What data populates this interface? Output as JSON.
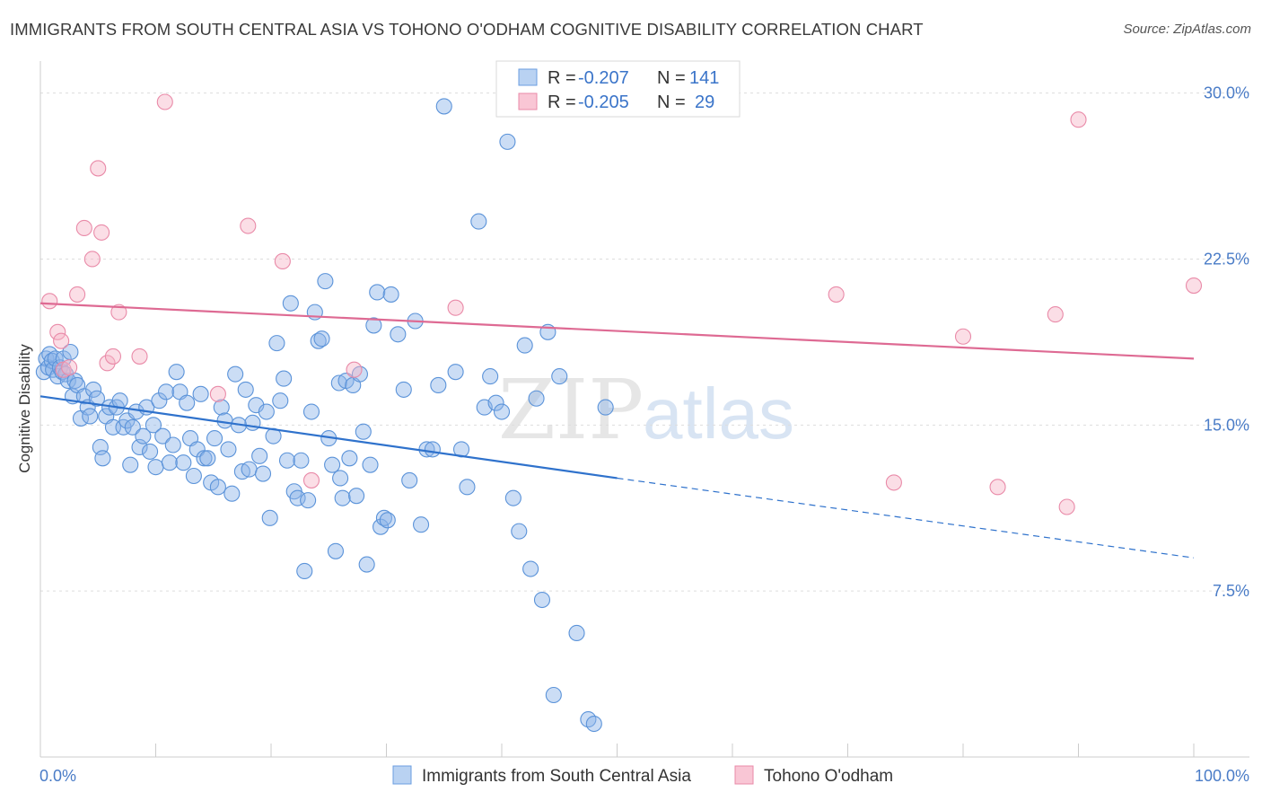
{
  "header": {
    "title": "IMMIGRANTS FROM SOUTH CENTRAL ASIA VS TOHONO O'ODHAM COGNITIVE DISABILITY CORRELATION CHART",
    "source": "Source: ZipAtlas.com"
  },
  "watermark": {
    "part1": "ZIP",
    "part2": "atlas"
  },
  "legend": {
    "rows": [
      {
        "r_label": "R = ",
        "r_value": "-0.207",
        "n_label": "N = ",
        "n_value": "141"
      },
      {
        "r_label": "R = ",
        "r_value": "-0.205",
        "n_label": "N = ",
        "n_value": "29"
      }
    ]
  },
  "chart_data": {
    "type": "scatter",
    "xlabel": "",
    "ylabel": "Cognitive Disability",
    "xlim": [
      0,
      100
    ],
    "ylim": [
      0,
      30
    ],
    "x_tick_labels": [
      "0.0%",
      "100.0%"
    ],
    "y_ticks": [
      7.5,
      15.0,
      22.5,
      30.0
    ],
    "y_tick_labels": [
      "7.5%",
      "15.0%",
      "22.5%",
      "30.0%"
    ],
    "grid": true,
    "legend_position": "top-center",
    "series": [
      {
        "name": "Immigrants from South Central Asia",
        "color": "#8bb4e8",
        "stroke": "#5b93d9",
        "trend_color": "#2f72cc",
        "trend": {
          "x0": 0,
          "y0": 16.3,
          "x1": 50,
          "y1": 12.6,
          "dashed_to_x": 100,
          "dashed_to_y": 9.0
        },
        "points": [
          [
            0.3,
            17.4
          ],
          [
            0.5,
            18.0
          ],
          [
            0.7,
            17.6
          ],
          [
            0.8,
            18.2
          ],
          [
            1.0,
            17.9
          ],
          [
            1.1,
            17.5
          ],
          [
            1.3,
            18.0
          ],
          [
            1.5,
            17.2
          ],
          [
            1.7,
            17.6
          ],
          [
            1.9,
            17.4
          ],
          [
            2.0,
            18.0
          ],
          [
            2.2,
            17.3
          ],
          [
            2.4,
            17.0
          ],
          [
            2.6,
            18.3
          ],
          [
            2.8,
            16.3
          ],
          [
            3.0,
            17.0
          ],
          [
            3.2,
            16.8
          ],
          [
            3.5,
            15.3
          ],
          [
            3.8,
            16.3
          ],
          [
            4.1,
            15.8
          ],
          [
            4.3,
            15.4
          ],
          [
            4.6,
            16.6
          ],
          [
            4.9,
            16.2
          ],
          [
            5.2,
            14.0
          ],
          [
            5.4,
            13.5
          ],
          [
            5.7,
            15.4
          ],
          [
            6.0,
            15.8
          ],
          [
            6.3,
            14.9
          ],
          [
            6.6,
            15.8
          ],
          [
            6.9,
            16.1
          ],
          [
            7.2,
            14.9
          ],
          [
            7.5,
            15.2
          ],
          [
            7.8,
            13.2
          ],
          [
            8.0,
            14.9
          ],
          [
            8.3,
            15.6
          ],
          [
            8.6,
            14.0
          ],
          [
            8.9,
            14.5
          ],
          [
            9.2,
            15.8
          ],
          [
            9.5,
            13.8
          ],
          [
            9.8,
            15.0
          ],
          [
            10.0,
            13.1
          ],
          [
            10.3,
            16.1
          ],
          [
            10.6,
            14.5
          ],
          [
            10.9,
            16.5
          ],
          [
            11.2,
            13.3
          ],
          [
            11.5,
            14.1
          ],
          [
            11.8,
            17.4
          ],
          [
            12.1,
            16.5
          ],
          [
            12.4,
            13.3
          ],
          [
            12.7,
            16.0
          ],
          [
            13.0,
            14.4
          ],
          [
            13.3,
            12.7
          ],
          [
            13.6,
            13.9
          ],
          [
            13.9,
            16.4
          ],
          [
            14.2,
            13.5
          ],
          [
            14.5,
            13.5
          ],
          [
            14.8,
            12.4
          ],
          [
            15.1,
            14.4
          ],
          [
            15.4,
            12.2
          ],
          [
            15.7,
            15.8
          ],
          [
            16.0,
            15.2
          ],
          [
            16.3,
            13.9
          ],
          [
            16.6,
            11.9
          ],
          [
            16.9,
            17.3
          ],
          [
            17.2,
            15.0
          ],
          [
            17.5,
            12.9
          ],
          [
            17.8,
            16.6
          ],
          [
            18.1,
            13.0
          ],
          [
            18.4,
            15.1
          ],
          [
            18.7,
            15.9
          ],
          [
            19.0,
            13.6
          ],
          [
            19.3,
            12.8
          ],
          [
            19.6,
            15.6
          ],
          [
            19.9,
            10.8
          ],
          [
            20.2,
            14.5
          ],
          [
            20.5,
            18.7
          ],
          [
            20.8,
            16.1
          ],
          [
            21.1,
            17.1
          ],
          [
            21.4,
            13.4
          ],
          [
            21.7,
            20.5
          ],
          [
            22.0,
            12.0
          ],
          [
            22.3,
            11.7
          ],
          [
            22.6,
            13.4
          ],
          [
            22.9,
            8.4
          ],
          [
            23.2,
            11.6
          ],
          [
            23.5,
            15.6
          ],
          [
            23.8,
            20.1
          ],
          [
            24.1,
            18.8
          ],
          [
            24.4,
            18.9
          ],
          [
            24.7,
            21.5
          ],
          [
            25.0,
            14.4
          ],
          [
            25.3,
            13.2
          ],
          [
            25.6,
            9.3
          ],
          [
            25.9,
            16.9
          ],
          [
            26.2,
            11.7
          ],
          [
            26.5,
            17.0
          ],
          [
            26.8,
            13.5
          ],
          [
            27.1,
            16.8
          ],
          [
            27.4,
            11.8
          ],
          [
            27.7,
            17.3
          ],
          [
            28.0,
            14.7
          ],
          [
            28.3,
            8.7
          ],
          [
            28.6,
            13.2
          ],
          [
            28.9,
            19.5
          ],
          [
            29.2,
            21.0
          ],
          [
            29.5,
            10.4
          ],
          [
            29.8,
            10.8
          ],
          [
            30.1,
            10.7
          ],
          [
            30.4,
            20.9
          ],
          [
            31.0,
            19.1
          ],
          [
            31.5,
            16.6
          ],
          [
            32.0,
            12.5
          ],
          [
            32.5,
            19.7
          ],
          [
            33.0,
            10.5
          ],
          [
            33.5,
            13.9
          ],
          [
            34.0,
            13.9
          ],
          [
            34.5,
            16.8
          ],
          [
            35.0,
            29.4
          ],
          [
            36.0,
            17.4
          ],
          [
            36.5,
            13.9
          ],
          [
            37.0,
            12.2
          ],
          [
            38.0,
            24.2
          ],
          [
            38.5,
            15.8
          ],
          [
            39.0,
            17.2
          ],
          [
            39.5,
            16.0
          ],
          [
            40.0,
            15.6
          ],
          [
            40.5,
            27.8
          ],
          [
            41.0,
            11.7
          ],
          [
            41.5,
            10.2
          ],
          [
            42.0,
            18.6
          ],
          [
            42.5,
            8.5
          ],
          [
            43.0,
            16.2
          ],
          [
            43.5,
            7.1
          ],
          [
            44.0,
            19.2
          ],
          [
            44.5,
            2.8
          ],
          [
            45.0,
            17.2
          ],
          [
            46.5,
            5.6
          ],
          [
            47.5,
            1.7
          ],
          [
            48.0,
            1.5
          ],
          [
            49.0,
            15.8
          ],
          [
            26.0,
            12.6
          ]
        ]
      },
      {
        "name": "Tohono O'odham",
        "color": "#f7b6c8",
        "stroke": "#e98aa8",
        "trend_color": "#de6a93",
        "trend": {
          "x0": 0,
          "y0": 20.5,
          "x1": 100,
          "y1": 18.0
        },
        "points": [
          [
            0.8,
            20.6
          ],
          [
            1.5,
            19.2
          ],
          [
            1.8,
            18.8
          ],
          [
            2.0,
            17.5
          ],
          [
            2.5,
            17.6
          ],
          [
            3.2,
            20.9
          ],
          [
            3.8,
            23.9
          ],
          [
            4.5,
            22.5
          ],
          [
            5.0,
            26.6
          ],
          [
            5.3,
            23.7
          ],
          [
            5.8,
            17.8
          ],
          [
            6.3,
            18.1
          ],
          [
            6.8,
            20.1
          ],
          [
            8.6,
            18.1
          ],
          [
            10.8,
            29.6
          ],
          [
            15.4,
            16.4
          ],
          [
            18.0,
            24.0
          ],
          [
            21.0,
            22.4
          ],
          [
            23.5,
            12.5
          ],
          [
            27.2,
            17.5
          ],
          [
            36.0,
            20.3
          ],
          [
            69.0,
            20.9
          ],
          [
            74.0,
            12.4
          ],
          [
            80.0,
            19.0
          ],
          [
            83.0,
            12.2
          ],
          [
            88.0,
            20.0
          ],
          [
            89.0,
            11.3
          ],
          [
            90.0,
            28.8
          ],
          [
            100.0,
            21.3
          ]
        ]
      }
    ]
  }
}
